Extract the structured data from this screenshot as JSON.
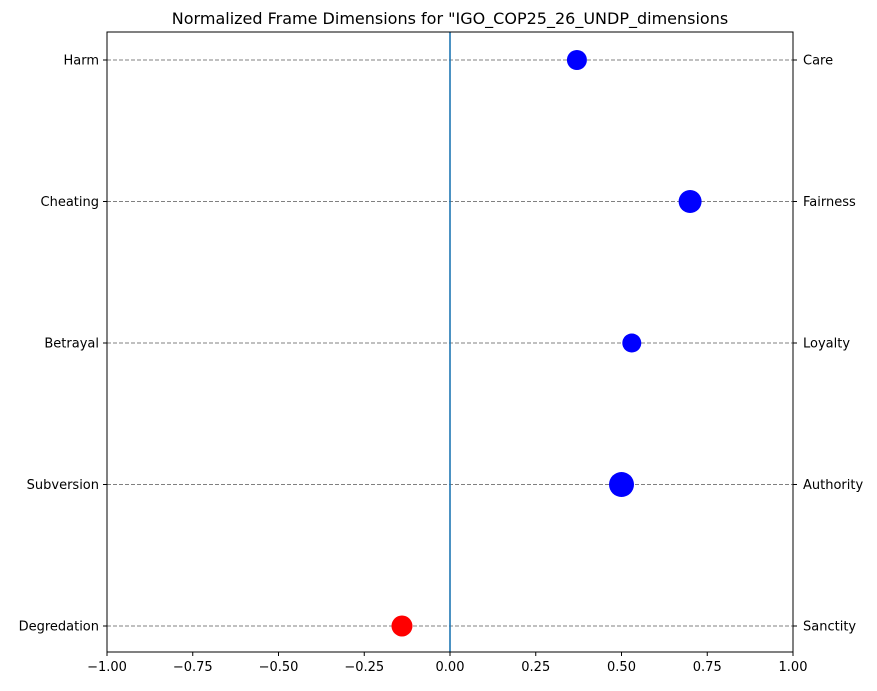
{
  "chart_data": {
    "type": "scatter",
    "title": "Normalized Frame Dimensions for \"IGO_COP25_26_UNDP_dimensions",
    "xlabel": "",
    "ylabel": "",
    "xlim": [
      -1.0,
      1.0
    ],
    "x_ticks": [
      -1.0,
      -0.75,
      -0.5,
      -0.25,
      0.0,
      0.25,
      0.5,
      0.75,
      1.0
    ],
    "x_tick_labels": [
      "−1.00",
      "−0.75",
      "−0.50",
      "−0.25",
      "0.00",
      "0.25",
      "0.50",
      "0.75",
      "1.00"
    ],
    "left_labels": [
      "Harm",
      "Cheating",
      "Betrayal",
      "Subversion",
      "Degredation"
    ],
    "right_labels": [
      "Care",
      "Fairness",
      "Loyalty",
      "Authority",
      "Sanctity"
    ],
    "grid": "horizontal dashed",
    "reference_line_x": 0.0,
    "reference_line_color": "#1f77b4",
    "positive_color": "#0000ff",
    "negative_color": "#ff0000",
    "points": [
      {
        "left_label": "Harm",
        "right_label": "Care",
        "x": 0.37,
        "marker_size": 1.0
      },
      {
        "left_label": "Cheating",
        "right_label": "Fairness",
        "x": 0.7,
        "marker_size": 1.15
      },
      {
        "left_label": "Betrayal",
        "right_label": "Loyalty",
        "x": 0.53,
        "marker_size": 0.95
      },
      {
        "left_label": "Subversion",
        "right_label": "Authority",
        "x": 0.5,
        "marker_size": 1.25
      },
      {
        "left_label": "Degredation",
        "right_label": "Sanctity",
        "x": -0.14,
        "marker_size": 1.05
      }
    ]
  }
}
